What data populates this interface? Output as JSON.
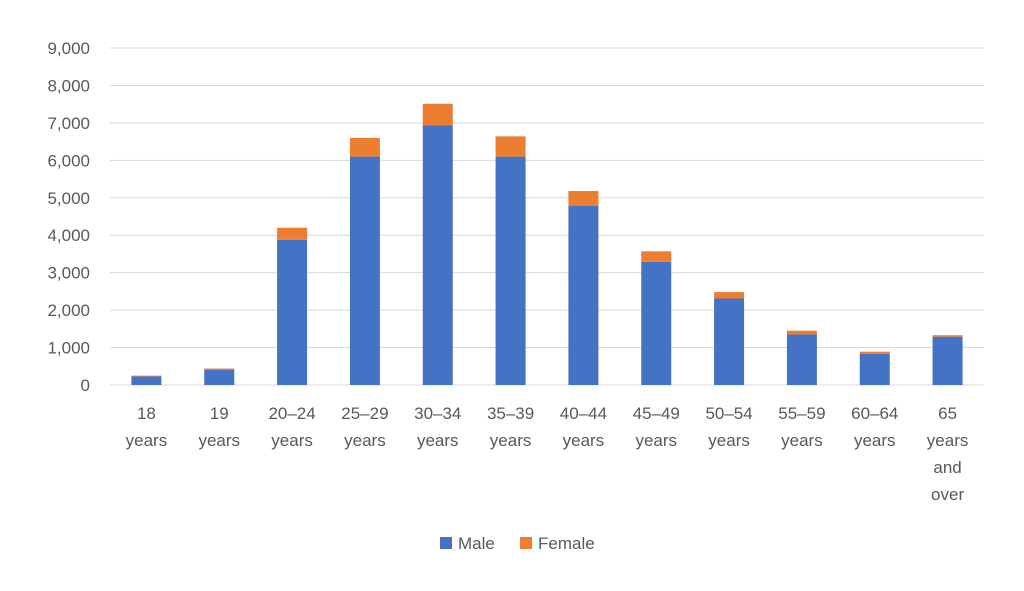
{
  "chart_data": {
    "type": "bar",
    "stacked": true,
    "categories": [
      [
        "18",
        "years"
      ],
      [
        "19",
        "years"
      ],
      [
        "20–24",
        "years"
      ],
      [
        "25–29",
        "years"
      ],
      [
        "30–34",
        "years"
      ],
      [
        "35–39",
        "years"
      ],
      [
        "40–44",
        "years"
      ],
      [
        "45–49",
        "years"
      ],
      [
        "50–54",
        "years"
      ],
      [
        "55–59",
        "years"
      ],
      [
        "60–64",
        "years"
      ],
      [
        "65",
        "years",
        "and",
        "over"
      ]
    ],
    "series": [
      {
        "name": "Male",
        "color": "#4472c4",
        "values": [
          230,
          400,
          3880,
          6100,
          6930,
          6100,
          4780,
          3290,
          2310,
          1350,
          830,
          1290
        ]
      },
      {
        "name": "Female",
        "color": "#ed7d31",
        "values": [
          20,
          40,
          320,
          500,
          580,
          540,
          400,
          280,
          170,
          100,
          60,
          40
        ]
      }
    ],
    "y_ticks": [
      "0",
      "1,000",
      "2,000",
      "3,000",
      "4,000",
      "5,000",
      "6,000",
      "7,000",
      "8,000",
      "9,000"
    ],
    "ylim": [
      0,
      9000
    ],
    "grid": true,
    "legend_position": "bottom"
  }
}
